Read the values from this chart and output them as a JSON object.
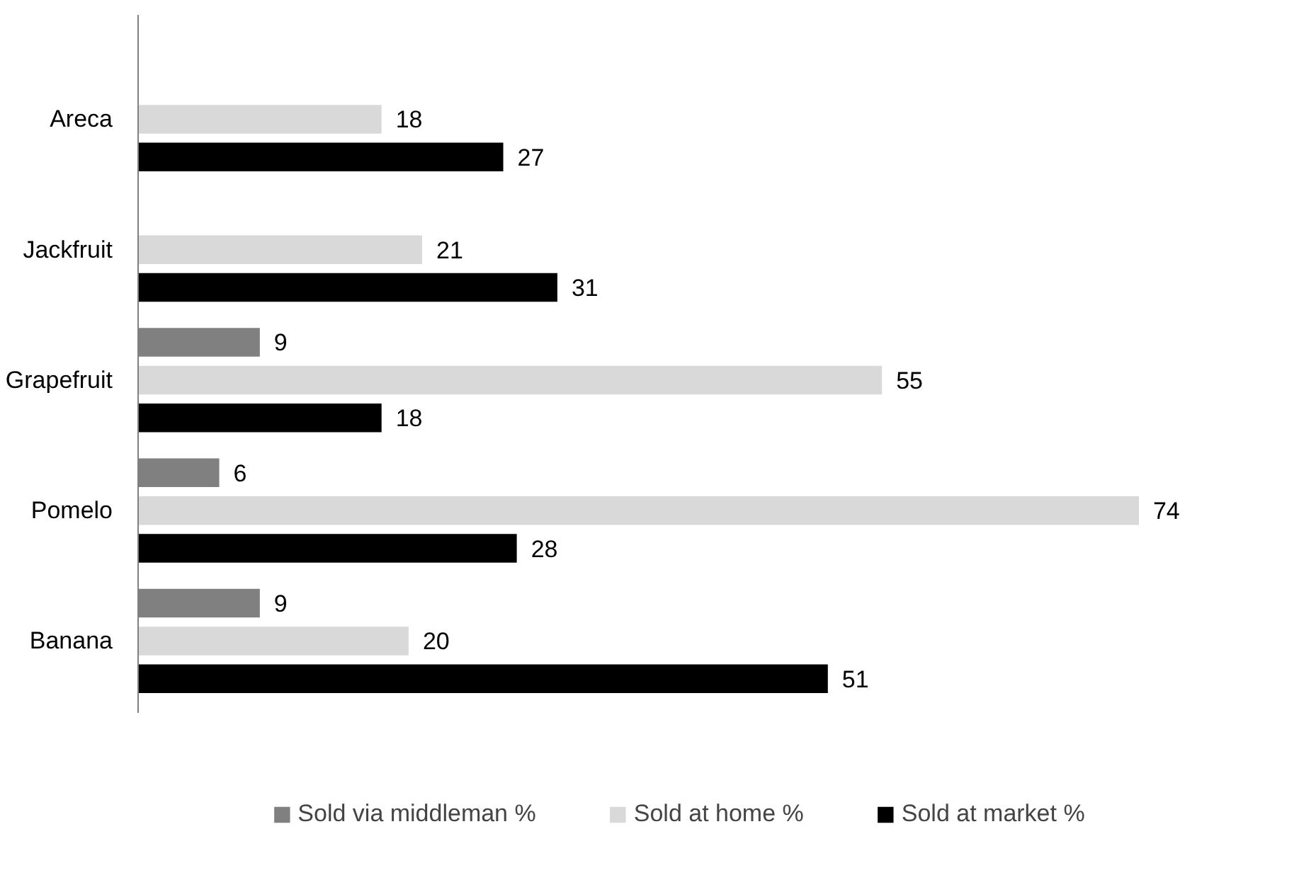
{
  "chart_data": {
    "type": "bar",
    "orientation": "horizontal",
    "data_labels": true,
    "legend": "bottom",
    "grid": false,
    "categories": [
      "Areca",
      "Jackfruit",
      "Grapefruit",
      "Pomelo",
      "Banana"
    ],
    "series": [
      {
        "name": "Sold via middleman %",
        "color": "#808080",
        "values": [
          null,
          null,
          9,
          6,
          9
        ]
      },
      {
        "name": "Sold at home %",
        "color": "#d9d9d9",
        "values": [
          18,
          21,
          55,
          74,
          20
        ]
      },
      {
        "name": "Sold at market %",
        "color": "#000000",
        "values": [
          27,
          31,
          18,
          28,
          51
        ]
      }
    ]
  }
}
